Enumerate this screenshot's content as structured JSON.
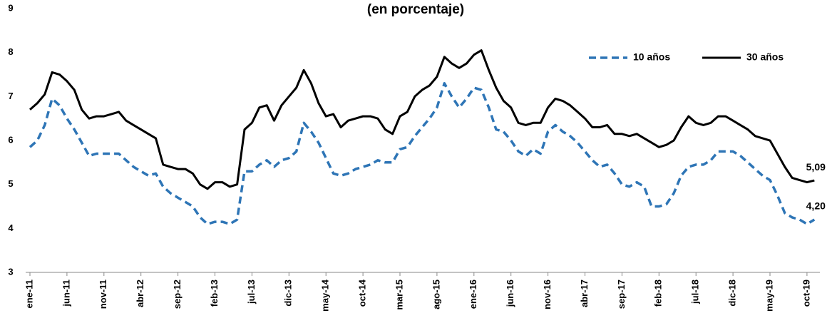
{
  "chart_data": {
    "type": "line",
    "title": "(en porcentaje)",
    "categories": [
      "ene-11",
      null,
      null,
      null,
      null,
      "jun-11",
      null,
      null,
      null,
      null,
      "nov-11",
      null,
      null,
      null,
      null,
      "abr-12",
      null,
      null,
      null,
      null,
      "sep-12",
      null,
      null,
      null,
      null,
      "feb-13",
      null,
      null,
      null,
      null,
      "jul-13",
      null,
      null,
      null,
      null,
      "dic-13",
      null,
      null,
      null,
      null,
      "may-14",
      null,
      null,
      null,
      null,
      "oct-14",
      null,
      null,
      null,
      null,
      "mar-15",
      null,
      null,
      null,
      null,
      "ago-15",
      null,
      null,
      null,
      null,
      "ene-16",
      null,
      null,
      null,
      null,
      "jun-16",
      null,
      null,
      null,
      null,
      "nov-16",
      null,
      null,
      null,
      null,
      "abr-17",
      null,
      null,
      null,
      null,
      "sep-17",
      null,
      null,
      null,
      null,
      "feb-18",
      null,
      null,
      null,
      null,
      "jul-18",
      null,
      null,
      null,
      null,
      "dic-18",
      null,
      null,
      null,
      null,
      "may-19",
      null,
      null,
      null,
      null,
      "oct-19",
      null
    ],
    "series": [
      {
        "name": "10 años",
        "color": "#2e75b6",
        "dashed": true,
        "values": [
          5.85,
          6.0,
          6.35,
          6.95,
          6.8,
          6.5,
          6.25,
          5.95,
          5.65,
          5.7,
          5.7,
          5.7,
          5.7,
          5.55,
          5.4,
          5.3,
          5.2,
          5.25,
          4.95,
          4.8,
          4.7,
          4.6,
          4.5,
          4.25,
          4.1,
          4.15,
          4.15,
          4.1,
          4.2,
          5.3,
          5.3,
          5.45,
          5.55,
          5.4,
          5.55,
          5.6,
          5.75,
          6.4,
          6.2,
          5.95,
          5.6,
          5.25,
          5.2,
          5.25,
          5.35,
          5.4,
          5.45,
          5.55,
          5.5,
          5.5,
          5.8,
          5.85,
          6.1,
          6.3,
          6.5,
          6.75,
          7.3,
          7.0,
          6.75,
          6.95,
          7.2,
          7.15,
          6.75,
          6.25,
          6.2,
          6.0,
          5.75,
          5.65,
          5.8,
          5.7,
          6.2,
          6.35,
          6.2,
          6.1,
          5.95,
          5.75,
          5.55,
          5.4,
          5.45,
          5.25,
          5.0,
          4.95,
          5.05,
          4.95,
          4.5,
          4.5,
          4.55,
          4.8,
          5.2,
          5.4,
          5.45,
          5.45,
          5.55,
          5.75,
          5.75,
          5.75,
          5.65,
          5.5,
          5.35,
          5.2,
          5.1,
          4.75,
          4.35,
          4.25,
          4.2,
          4.1,
          4.2
        ],
        "value_labels": [
          null,
          null,
          null,
          null,
          null,
          null,
          null,
          null,
          null,
          null,
          null,
          null,
          null,
          null,
          null,
          null,
          null,
          null,
          null,
          null,
          null,
          null,
          null,
          null,
          null,
          null,
          null,
          null,
          null,
          null,
          null,
          null,
          null,
          null,
          null,
          null,
          null,
          null,
          null,
          null,
          null,
          null,
          null,
          null,
          null,
          null,
          null,
          null,
          null,
          null,
          null,
          null,
          null,
          null,
          null,
          null,
          null,
          null,
          null,
          null,
          null,
          null,
          null,
          null,
          null,
          null,
          null,
          null,
          null,
          null,
          null,
          null,
          null,
          null,
          null,
          null,
          null,
          null,
          null,
          null,
          null,
          null,
          null,
          null,
          null,
          null,
          null,
          null,
          null,
          null,
          null,
          null,
          null,
          null,
          null,
          null,
          null,
          null,
          null,
          null,
          null,
          null,
          null,
          null,
          null,
          null,
          "4,20"
        ]
      },
      {
        "name": "30 años",
        "color": "#000000",
        "dashed": false,
        "values": [
          6.7,
          6.85,
          7.05,
          7.55,
          7.5,
          7.35,
          7.15,
          6.7,
          6.5,
          6.55,
          6.55,
          6.6,
          6.65,
          6.45,
          6.35,
          6.25,
          6.15,
          6.05,
          5.45,
          5.4,
          5.35,
          5.35,
          5.25,
          5.0,
          4.9,
          5.05,
          5.05,
          4.95,
          5.0,
          6.25,
          6.4,
          6.75,
          6.8,
          6.45,
          6.8,
          7.0,
          7.2,
          7.6,
          7.3,
          6.85,
          6.55,
          6.6,
          6.3,
          6.45,
          6.5,
          6.55,
          6.55,
          6.5,
          6.25,
          6.15,
          6.55,
          6.65,
          7.0,
          7.15,
          7.25,
          7.45,
          7.9,
          7.75,
          7.65,
          7.75,
          7.95,
          8.05,
          7.6,
          7.2,
          6.9,
          6.75,
          6.4,
          6.35,
          6.4,
          6.4,
          6.75,
          6.95,
          6.9,
          6.8,
          6.65,
          6.5,
          6.3,
          6.3,
          6.35,
          6.15,
          6.15,
          6.1,
          6.15,
          6.05,
          5.95,
          5.85,
          5.9,
          6.0,
          6.3,
          6.55,
          6.4,
          6.35,
          6.4,
          6.55,
          6.55,
          6.45,
          6.35,
          6.25,
          6.1,
          6.05,
          6.0,
          5.7,
          5.4,
          5.15,
          5.1,
          5.05,
          5.09
        ],
        "value_labels": [
          null,
          null,
          null,
          null,
          null,
          null,
          null,
          null,
          null,
          null,
          null,
          null,
          null,
          null,
          null,
          null,
          null,
          null,
          null,
          null,
          null,
          null,
          null,
          null,
          null,
          null,
          null,
          null,
          null,
          null,
          null,
          null,
          null,
          null,
          null,
          null,
          null,
          null,
          null,
          null,
          null,
          null,
          null,
          null,
          null,
          null,
          null,
          null,
          null,
          null,
          null,
          null,
          null,
          null,
          null,
          null,
          null,
          null,
          null,
          null,
          null,
          null,
          null,
          null,
          null,
          null,
          null,
          null,
          null,
          null,
          null,
          null,
          null,
          null,
          null,
          null,
          null,
          null,
          null,
          null,
          null,
          null,
          null,
          null,
          null,
          null,
          null,
          null,
          null,
          null,
          null,
          null,
          null,
          null,
          null,
          null,
          null,
          null,
          null,
          null,
          null,
          null,
          null,
          null,
          null,
          null,
          "5,09"
        ]
      }
    ],
    "ylim": [
      3,
      9
    ],
    "yticks": [
      3,
      4,
      5,
      6,
      7,
      8,
      9
    ],
    "grid": false,
    "legend": "top-right"
  }
}
